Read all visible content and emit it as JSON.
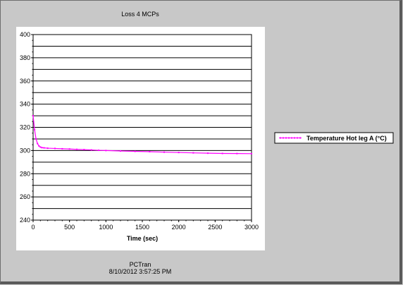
{
  "chart_data": {
    "type": "line",
    "title": "Loss 4 MCPs",
    "xlabel": "Time (sec)",
    "ylabel": "",
    "xlim": [
      0,
      3000
    ],
    "ylim": [
      240,
      400
    ],
    "x_ticks": [
      0,
      500,
      1000,
      1500,
      2000,
      2500,
      3000
    ],
    "y_ticks": [
      240,
      260,
      280,
      300,
      320,
      340,
      360,
      380,
      400
    ],
    "grid": true,
    "legend_position": "right",
    "series": [
      {
        "name": "Temperature Hot leg A (°C)",
        "color": "#ff00ff",
        "x": [
          0,
          20,
          40,
          60,
          80,
          100,
          120,
          150,
          200,
          300,
          400,
          500,
          600,
          700,
          800,
          900,
          1000,
          1200,
          1400,
          1600,
          1800,
          2000,
          2200,
          2400,
          2600,
          2800,
          3000
        ],
        "y": [
          330,
          318,
          310,
          306,
          304,
          303,
          302.5,
          302.3,
          302,
          301.8,
          301.5,
          301.3,
          301,
          300.8,
          300.5,
          300.2,
          300,
          299.6,
          299.3,
          299,
          298.6,
          298.3,
          298,
          297.7,
          297.5,
          297.4,
          297.3
        ]
      }
    ]
  },
  "footer": {
    "app_name": "PCTran",
    "timestamp": "8/10/2012 3:57:25 PM"
  }
}
